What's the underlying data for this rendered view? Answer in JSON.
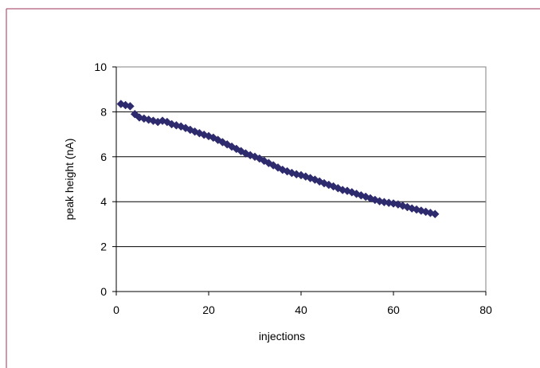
{
  "chart_data": {
    "type": "scatter",
    "title": "",
    "xlabel": "injections",
    "ylabel": "peak height (nA)",
    "xlim": [
      0,
      80
    ],
    "ylim": [
      0,
      10
    ],
    "x_ticks": [
      "0",
      "20",
      "40",
      "60",
      "80"
    ],
    "y_ticks": [
      "0",
      "2",
      "4",
      "6",
      "8",
      "10"
    ],
    "grid": "horizontal major gridlines",
    "legend": "none",
    "marker": "diamond",
    "series": [
      {
        "color": "#2e2a6e",
        "points": [
          [
            1,
            8.35
          ],
          [
            2,
            8.3
          ],
          [
            3,
            8.25
          ],
          [
            4,
            7.9
          ],
          [
            5,
            7.75
          ],
          [
            6,
            7.7
          ],
          [
            7,
            7.65
          ],
          [
            8,
            7.6
          ],
          [
            9,
            7.55
          ],
          [
            10,
            7.6
          ],
          [
            11,
            7.55
          ],
          [
            12,
            7.45
          ],
          [
            13,
            7.4
          ],
          [
            14,
            7.35
          ],
          [
            15,
            7.28
          ],
          [
            16,
            7.2
          ],
          [
            17,
            7.12
          ],
          [
            18,
            7.05
          ],
          [
            19,
            6.98
          ],
          [
            20,
            6.92
          ],
          [
            21,
            6.85
          ],
          [
            22,
            6.75
          ],
          [
            23,
            6.65
          ],
          [
            24,
            6.55
          ],
          [
            25,
            6.45
          ],
          [
            26,
            6.35
          ],
          [
            27,
            6.25
          ],
          [
            28,
            6.15
          ],
          [
            29,
            6.07
          ],
          [
            30,
            6.0
          ],
          [
            31,
            5.92
          ],
          [
            32,
            5.82
          ],
          [
            33,
            5.72
          ],
          [
            34,
            5.62
          ],
          [
            35,
            5.52
          ],
          [
            36,
            5.42
          ],
          [
            37,
            5.35
          ],
          [
            38,
            5.28
          ],
          [
            39,
            5.22
          ],
          [
            40,
            5.18
          ],
          [
            41,
            5.12
          ],
          [
            42,
            5.05
          ],
          [
            43,
            4.98
          ],
          [
            44,
            4.9
          ],
          [
            45,
            4.82
          ],
          [
            46,
            4.75
          ],
          [
            47,
            4.68
          ],
          [
            48,
            4.6
          ],
          [
            49,
            4.52
          ],
          [
            50,
            4.48
          ],
          [
            51,
            4.42
          ],
          [
            52,
            4.35
          ],
          [
            53,
            4.28
          ],
          [
            54,
            4.22
          ],
          [
            55,
            4.15
          ],
          [
            56,
            4.08
          ],
          [
            57,
            4.02
          ],
          [
            58,
            3.98
          ],
          [
            59,
            3.95
          ],
          [
            60,
            3.92
          ],
          [
            61,
            3.88
          ],
          [
            62,
            3.82
          ],
          [
            63,
            3.76
          ],
          [
            64,
            3.7
          ],
          [
            65,
            3.65
          ],
          [
            66,
            3.6
          ],
          [
            67,
            3.55
          ],
          [
            68,
            3.5
          ],
          [
            69,
            3.45
          ]
        ]
      }
    ]
  }
}
